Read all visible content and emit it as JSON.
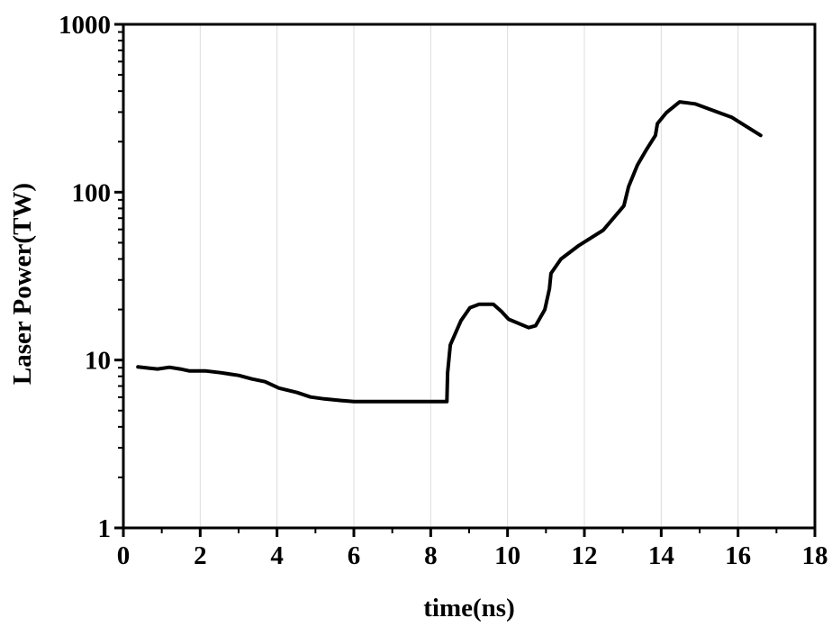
{
  "chart_data": {
    "type": "line",
    "title": "",
    "xlabel": "time(ns)",
    "ylabel": "Laser Power(TW)",
    "xlim": [
      0,
      18
    ],
    "ylim": [
      1,
      1000
    ],
    "yscale": "log",
    "grid": "vertical lines at x ticks, light gray",
    "legend": "none",
    "x_ticks": [
      0,
      2,
      4,
      6,
      8,
      10,
      12,
      14,
      16,
      18
    ],
    "x_tick_labels": [
      "0",
      "2",
      "4",
      "6",
      "8",
      "10",
      "12",
      "14",
      "16",
      "18"
    ],
    "y_ticks": [
      1,
      10,
      100,
      1000
    ],
    "y_tick_labels": [
      "1",
      "10",
      "100",
      "1000"
    ],
    "line_color": "#000000",
    "series": [
      {
        "x": [
          0.38,
          0.66,
          0.89,
          1.2,
          1.48,
          1.71,
          2.13,
          2.53,
          3.0,
          3.35,
          3.69,
          4.05,
          4.52,
          4.87,
          5.23,
          5.7,
          6.0,
          6.63,
          8.42,
          8.44,
          8.51,
          8.79,
          9.02,
          9.26,
          9.63,
          9.84,
          10.03,
          10.55,
          10.73,
          10.97,
          11.09,
          11.13,
          11.39,
          11.86,
          12.49,
          13.03,
          13.15,
          13.38,
          13.6,
          13.85,
          13.9,
          14.13,
          14.48,
          14.88,
          15.84,
          16.59
        ],
        "y": [
          9.1,
          8.95,
          8.84,
          9.06,
          8.84,
          8.62,
          8.62,
          8.41,
          8.1,
          7.71,
          7.43,
          6.81,
          6.41,
          6.02,
          5.87,
          5.73,
          5.66,
          5.66,
          5.66,
          8.4,
          12.3,
          17.2,
          20.5,
          21.5,
          21.5,
          19.5,
          17.5,
          15.6,
          16.0,
          20.0,
          26.6,
          32.8,
          40.0,
          48.2,
          59.4,
          83,
          108,
          145,
          177,
          218,
          256,
          297,
          345,
          336,
          279,
          218
        ]
      }
    ]
  }
}
